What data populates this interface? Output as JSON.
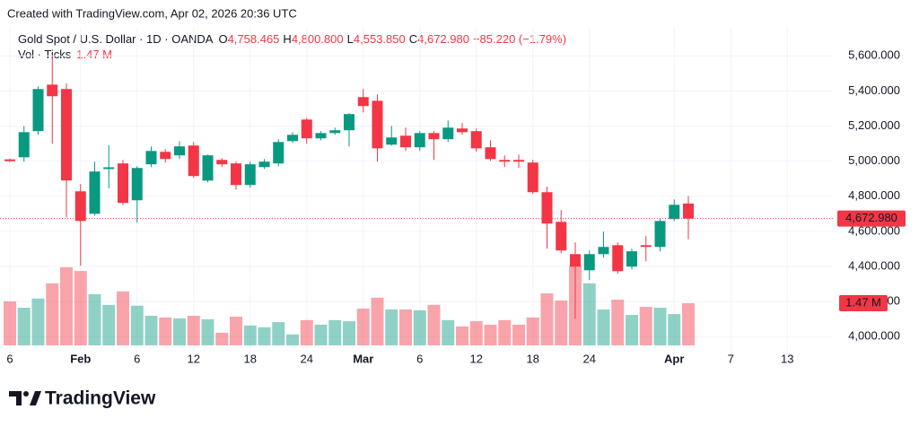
{
  "chart_data": {
    "type": "candlestick",
    "credit": "Created with TradingView.com, Apr 02, 2026 20:36 UTC",
    "title": "Gold Spot / U.S. Dollar · 1D · OANDA",
    "ohlc_legend": [
      {
        "key": "O",
        "text": "4,758.465"
      },
      {
        "key": "H",
        "text": "4,800.800"
      },
      {
        "key": "L",
        "text": "4,553.850"
      },
      {
        "key": "C",
        "text": "4,672.980"
      }
    ],
    "change_text": "−85.220 (−1.79%)",
    "volume_title": "Vol · Ticks",
    "volume_label": "1.47 M",
    "last_price_label": "4,672.980",
    "brand": "TradingView",
    "up_color": "#089981",
    "down_color": "#f23645",
    "categories": [
      "6",
      null,
      null,
      null,
      null,
      "Feb",
      null,
      null,
      null,
      "6",
      null,
      null,
      null,
      "12",
      null,
      null,
      null,
      "18",
      null,
      null,
      null,
      "24",
      null,
      null,
      null,
      "Mar",
      null,
      null,
      null,
      "6",
      null,
      null,
      null,
      "12",
      null,
      null,
      null,
      "18",
      null,
      null,
      null,
      "24",
      null,
      null,
      null,
      null,
      null,
      "Apr",
      null,
      null,
      null,
      "7",
      null,
      null,
      null,
      "13",
      null,
      null
    ],
    "open": [
      5010,
      5022,
      5171,
      5436,
      5411,
      4828,
      4700,
      4955,
      4987,
      4777,
      4982,
      5053,
      5033,
      5089,
      4889,
      5007,
      4987,
      4864,
      4966,
      4987,
      5114,
      5237,
      5130,
      5160,
      5176,
      5365,
      5344,
      5094,
      5145,
      5079,
      5160,
      5125,
      5186,
      5171,
      5079,
      5007,
      5007,
      4992,
      4823,
      4654,
      4470,
      4378,
      4470,
      4521,
      4399,
      4521,
      4511,
      4670,
      4758.465,
      null,
      null,
      null,
      null,
      null,
      null,
      null,
      null,
      null
    ],
    "high": [
      5015,
      5200,
      5426,
      5595,
      5442,
      4869,
      4997,
      5090,
      5007,
      4971,
      5084,
      5068,
      5114,
      5109,
      5038,
      5017,
      4997,
      4997,
      5012,
      5125,
      5165,
      5247,
      5171,
      5191,
      5273,
      5411,
      5380,
      5201,
      5191,
      5171,
      5171,
      5232,
      5217,
      5186,
      5119,
      5033,
      5038,
      5007,
      4854,
      4721,
      4537,
      4491,
      4598,
      4537,
      4501,
      4572,
      4670,
      4782,
      4800.8,
      null,
      null,
      null,
      null,
      null,
      null,
      null,
      null,
      null
    ],
    "low": [
      4995,
      4997,
      5150,
      5099,
      4680,
      4404,
      4690,
      4845,
      4750,
      4649,
      4966,
      4992,
      5012,
      4905,
      4879,
      4966,
      4838,
      4849,
      4956,
      4971,
      5104,
      5099,
      5119,
      5150,
      5084,
      5278,
      4997,
      5089,
      5058,
      5058,
      5007,
      5109,
      5150,
      5053,
      5002,
      4966,
      4961,
      4813,
      4501,
      4475,
      4102,
      4322,
      4450,
      4358,
      4383,
      4429,
      4486,
      4659,
      4553.85,
      null,
      null,
      null,
      null,
      null,
      null,
      null,
      null,
      null
    ],
    "close": [
      5000,
      5165,
      5411,
      5370,
      4890,
      4659,
      4941,
      4965,
      4762,
      4961,
      5058,
      5012,
      5084,
      4915,
      5033,
      4982,
      4864,
      4982,
      4997,
      5109,
      5150,
      5130,
      5160,
      5176,
      5268,
      5314,
      5073,
      5135,
      5079,
      5160,
      5125,
      5191,
      5165,
      5073,
      5012,
      4997,
      4997,
      4823,
      4644,
      4491,
      4399,
      4470,
      4511,
      4373,
      4486,
      4511,
      4659,
      4751,
      4672.98,
      null,
      null,
      null,
      null,
      null,
      null,
      null,
      null,
      null
    ],
    "volume": [
      1.53,
      1.31,
      1.63,
      2.16,
      2.72,
      2.59,
      1.78,
      1.41,
      1.88,
      1.38,
      1.03,
      0.97,
      0.94,
      1.03,
      0.91,
      0.44,
      1.0,
      0.69,
      0.63,
      0.81,
      0.38,
      0.88,
      0.72,
      0.88,
      0.84,
      1.28,
      1.66,
      1.25,
      1.25,
      1.22,
      1.41,
      0.88,
      0.66,
      0.84,
      0.72,
      0.88,
      0.72,
      0.97,
      1.81,
      1.56,
      2.78,
      2.16,
      1.25,
      1.59,
      1.06,
      1.34,
      1.31,
      1.09,
      1.47,
      null,
      null,
      null,
      null,
      null,
      null,
      null,
      null,
      null
    ],
    "ylim": [
      3950,
      5765
    ],
    "yticks": [
      {
        "value": 4000,
        "label": "4,000.000"
      },
      {
        "value": 4200,
        "label": "4,200.000"
      },
      {
        "value": 4400,
        "label": "4,400.000"
      },
      {
        "value": 4600,
        "label": "4,600.000"
      },
      {
        "value": 4800,
        "label": "4,800.000"
      },
      {
        "value": 5000,
        "label": "5,000.000"
      },
      {
        "value": 5200,
        "label": "5,200.000"
      },
      {
        "value": 5400,
        "label": "5,400.000"
      },
      {
        "value": 5600,
        "label": "5,600.000"
      }
    ],
    "grid": true
  }
}
